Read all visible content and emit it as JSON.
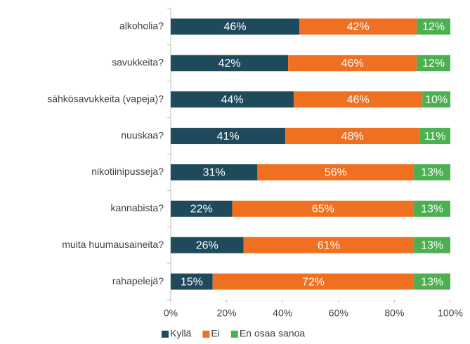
{
  "chart_data": {
    "type": "stacked_barh",
    "categories": [
      "alkoholia?",
      "savukkeita?",
      "sähkösavukkeita (vapeja)?",
      "nuuskaa?",
      "nikotiinipusseja?",
      "kannabista?",
      "muita huumausaineita?",
      "rahapelejä?"
    ],
    "series": [
      {
        "name": "Kyllä",
        "color": "#1f4a5c",
        "values": [
          46,
          42,
          44,
          41,
          31,
          22,
          26,
          15
        ],
        "value_labels": [
          "46%",
          "42%",
          "44%",
          "41%",
          "31%",
          "22%",
          "26%",
          "15%"
        ]
      },
      {
        "name": "Ei",
        "color": "#f07022",
        "values": [
          42,
          46,
          46,
          48,
          56,
          65,
          61,
          72
        ],
        "value_labels": [
          "42%",
          "46%",
          "46%",
          "48%",
          "56%",
          "65%",
          "61%",
          "72%"
        ]
      },
      {
        "name": "En osaa sanoa",
        "color": "#4caf50",
        "values": [
          12,
          12,
          10,
          11,
          13,
          13,
          13,
          13
        ],
        "value_labels": [
          "12%",
          "12%",
          "10%",
          "11%",
          "13%",
          "13%",
          "13%",
          "13%"
        ]
      }
    ],
    "xlim": [
      0,
      100
    ],
    "xticks": [
      {
        "value": 0,
        "label": "0%"
      },
      {
        "value": 20,
        "label": "20%"
      },
      {
        "value": 40,
        "label": "40%"
      },
      {
        "value": 60,
        "label": "60%"
      },
      {
        "value": 80,
        "label": "80%"
      },
      {
        "value": 100,
        "label": "100%"
      }
    ],
    "legend": "bottom"
  }
}
